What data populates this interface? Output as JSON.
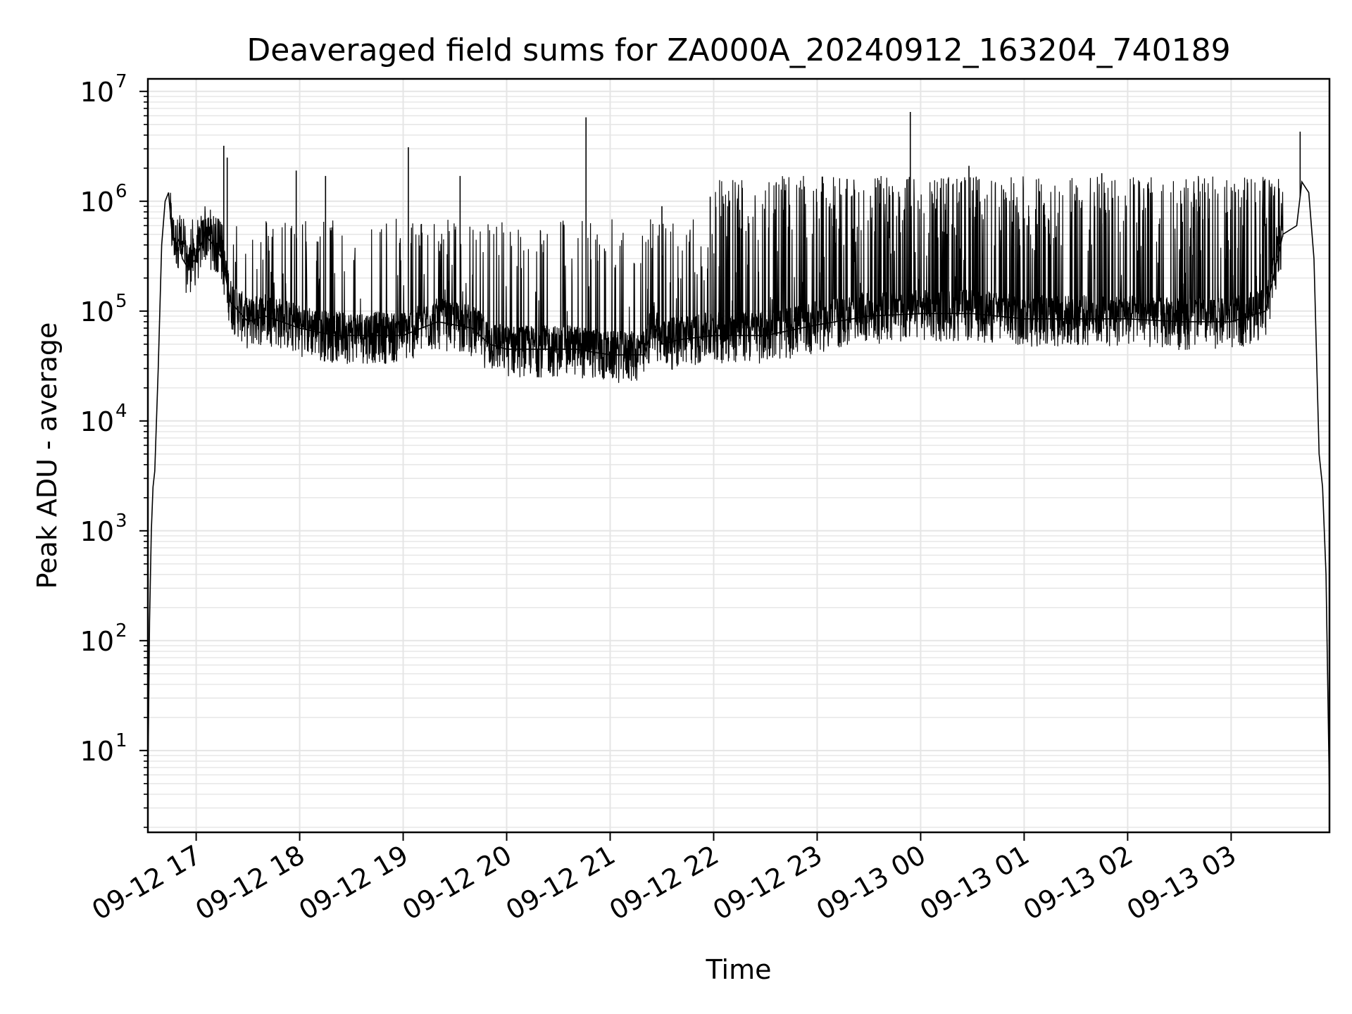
{
  "chart_data": {
    "type": "line",
    "title": "Deaveraged field sums for ZA000A_20240912_163204_740189",
    "xlabel": "Time",
    "ylabel": "Peak ADU - average",
    "yscale": "log",
    "ylim": [
      1.8,
      13000000
    ],
    "xlim": [
      "2024-09-12 16:32",
      "2024-09-13 03:57"
    ],
    "grid": true,
    "legend": "none",
    "line_color": "#000000",
    "grid_color": "#e5e5e5",
    "x_ticks": [
      {
        "t": "2024-09-12 17:00",
        "label": "09-12 17"
      },
      {
        "t": "2024-09-12 18:00",
        "label": "09-12 18"
      },
      {
        "t": "2024-09-12 19:00",
        "label": "09-12 19"
      },
      {
        "t": "2024-09-12 20:00",
        "label": "09-12 20"
      },
      {
        "t": "2024-09-12 21:00",
        "label": "09-12 21"
      },
      {
        "t": "2024-09-12 22:00",
        "label": "09-12 22"
      },
      {
        "t": "2024-09-12 23:00",
        "label": "09-12 23"
      },
      {
        "t": "2024-09-13 00:00",
        "label": "09-13 00"
      },
      {
        "t": "2024-09-13 01:00",
        "label": "09-13 01"
      },
      {
        "t": "2024-09-13 02:00",
        "label": "09-13 02"
      },
      {
        "t": "2024-09-13 03:00",
        "label": "09-13 03"
      }
    ],
    "y_ticks": [
      {
        "value": 10,
        "base": "10",
        "exp": "1"
      },
      {
        "value": 100,
        "base": "10",
        "exp": "2"
      },
      {
        "value": 1000,
        "base": "10",
        "exp": "3"
      },
      {
        "value": 10000,
        "base": "10",
        "exp": "4"
      },
      {
        "value": 100000,
        "base": "10",
        "exp": "5"
      },
      {
        "value": 1000000,
        "base": "10",
        "exp": "6"
      },
      {
        "value": 10000000,
        "base": "10",
        "exp": "7"
      }
    ],
    "series": [
      {
        "x": [
          "2024-09-12 16:32",
          "2024-09-12 16:33",
          "2024-09-12 16:34",
          "2024-09-12 16:35",
          "2024-09-12 16:36",
          "2024-09-12 16:38",
          "2024-09-12 16:40",
          "2024-09-12 16:42",
          "2024-09-12 16:44",
          "2024-09-12 16:46",
          "2024-09-12 16:48",
          "2024-09-12 16:50",
          "2024-09-12 16:52",
          "2024-09-12 16:55",
          "2024-09-12 17:00",
          "2024-09-12 17:05",
          "2024-09-12 17:10",
          "2024-09-12 17:15",
          "2024-09-12 17:20",
          "2024-09-12 17:30",
          "2024-09-12 17:40",
          "2024-09-12 18:00",
          "2024-09-12 18:20",
          "2024-09-12 18:40",
          "2024-09-12 19:00",
          "2024-09-12 19:20",
          "2024-09-12 19:40",
          "2024-09-12 19:50",
          "2024-09-12 20:00",
          "2024-09-12 20:20",
          "2024-09-12 20:40",
          "2024-09-12 21:00",
          "2024-09-12 21:20",
          "2024-09-12 21:25",
          "2024-09-12 21:30",
          "2024-09-12 21:40",
          "2024-09-12 22:00",
          "2024-09-12 22:30",
          "2024-09-12 23:00",
          "2024-09-12 23:30",
          "2024-09-13 00:00",
          "2024-09-13 00:30",
          "2024-09-13 01:00",
          "2024-09-13 01:30",
          "2024-09-13 02:00",
          "2024-09-13 02:30",
          "2024-09-13 03:00",
          "2024-09-13 03:20",
          "2024-09-13 03:30",
          "2024-09-13 03:38",
          "2024-09-13 03:41",
          "2024-09-13 03:45",
          "2024-09-13 03:48",
          "2024-09-13 03:51",
          "2024-09-13 03:53",
          "2024-09-13 03:55",
          "2024-09-13 03:57"
        ],
        "y": [
          5,
          150,
          1000,
          2500,
          3500,
          30000,
          400000,
          1000000,
          1200000,
          500000,
          400000,
          450000,
          300000,
          250000,
          300000,
          500000,
          400000,
          300000,
          120000,
          80000,
          90000,
          70000,
          60000,
          60000,
          60000,
          80000,
          70000,
          50000,
          45000,
          45000,
          45000,
          40000,
          40000,
          80000,
          50000,
          55000,
          60000,
          60000,
          75000,
          90000,
          95000,
          95000,
          85000,
          85000,
          85000,
          80000,
          80000,
          100000,
          500000,
          600000,
          1500000,
          1200000,
          300000,
          5000,
          2500,
          400,
          3.8
        ]
      }
    ],
    "spikes": [
      {
        "x": "2024-09-12 17:16",
        "y": 3200000
      },
      {
        "x": "2024-09-12 17:18",
        "y": 2500000
      },
      {
        "x": "2024-09-12 17:58",
        "y": 1900000
      },
      {
        "x": "2024-09-12 18:15",
        "y": 1700000
      },
      {
        "x": "2024-09-12 19:03",
        "y": 3100000
      },
      {
        "x": "2024-09-12 19:33",
        "y": 1700000
      },
      {
        "x": "2024-09-12 20:46",
        "y": 5800000
      },
      {
        "x": "2024-09-12 21:30",
        "y": 900000
      },
      {
        "x": "2024-09-12 21:58",
        "y": 1100000
      },
      {
        "x": "2024-09-12 23:54",
        "y": 6500000
      },
      {
        "x": "2024-09-13 00:28",
        "y": 2100000
      },
      {
        "x": "2024-09-13 01:45",
        "y": 1800000
      },
      {
        "x": "2024-09-13 03:40",
        "y": 4300000
      }
    ]
  }
}
